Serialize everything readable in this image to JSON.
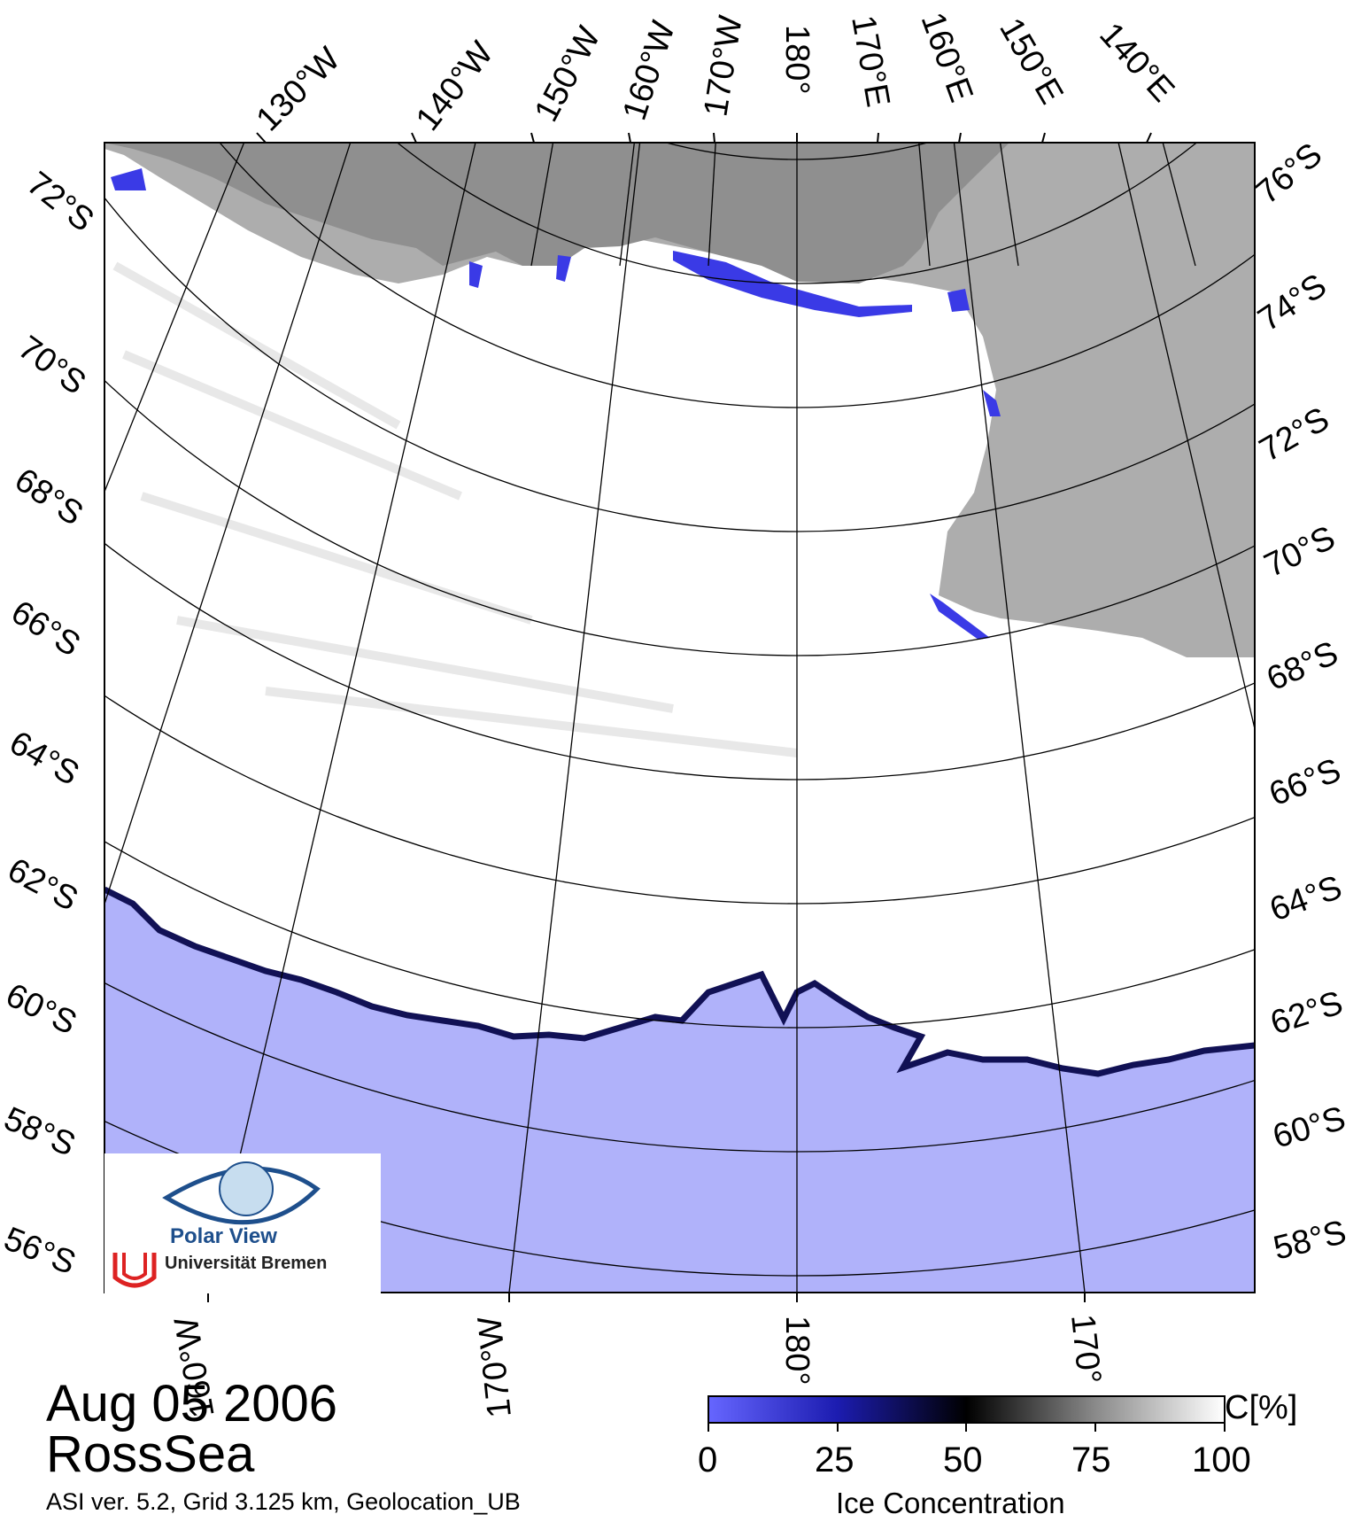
{
  "map": {
    "date": "Aug 05 2006",
    "region": "RossSea",
    "footer": "ASI ver. 5.2,  Grid 3.125 km, Geolocation_UB",
    "colors": {
      "open_water": "#b0b2fa",
      "land": "#8f8f8f",
      "ice_shelf": "#adadad",
      "ice": "#ffffff",
      "grid": "#000000",
      "coast_low": "#3a3ae6"
    },
    "top_labels": [
      "130°W",
      "140°W",
      "150°W",
      "160°W",
      "170°W",
      "180°",
      "170°E",
      "160°E",
      "150°E",
      "140°E"
    ],
    "left_labels": [
      "72°S",
      "70°S",
      "68°S",
      "66°S",
      "64°S",
      "62°S",
      "60°S",
      "58°S",
      "56°S"
    ],
    "right_labels": [
      "76°S",
      "74°S",
      "72°S",
      "70°S",
      "68°S",
      "66°S",
      "64°S",
      "62°S",
      "60°S",
      "58°S"
    ],
    "bottom_labels": [
      "160°W",
      "170°W",
      "180°",
      "170°"
    ]
  },
  "legend": {
    "title": "Ice Concentration",
    "unit": "C[%]",
    "ticks": [
      "0",
      "25",
      "50",
      "75",
      "100"
    ]
  },
  "logo": {
    "title": "Polar View",
    "institution": "Universität Bremen"
  }
}
